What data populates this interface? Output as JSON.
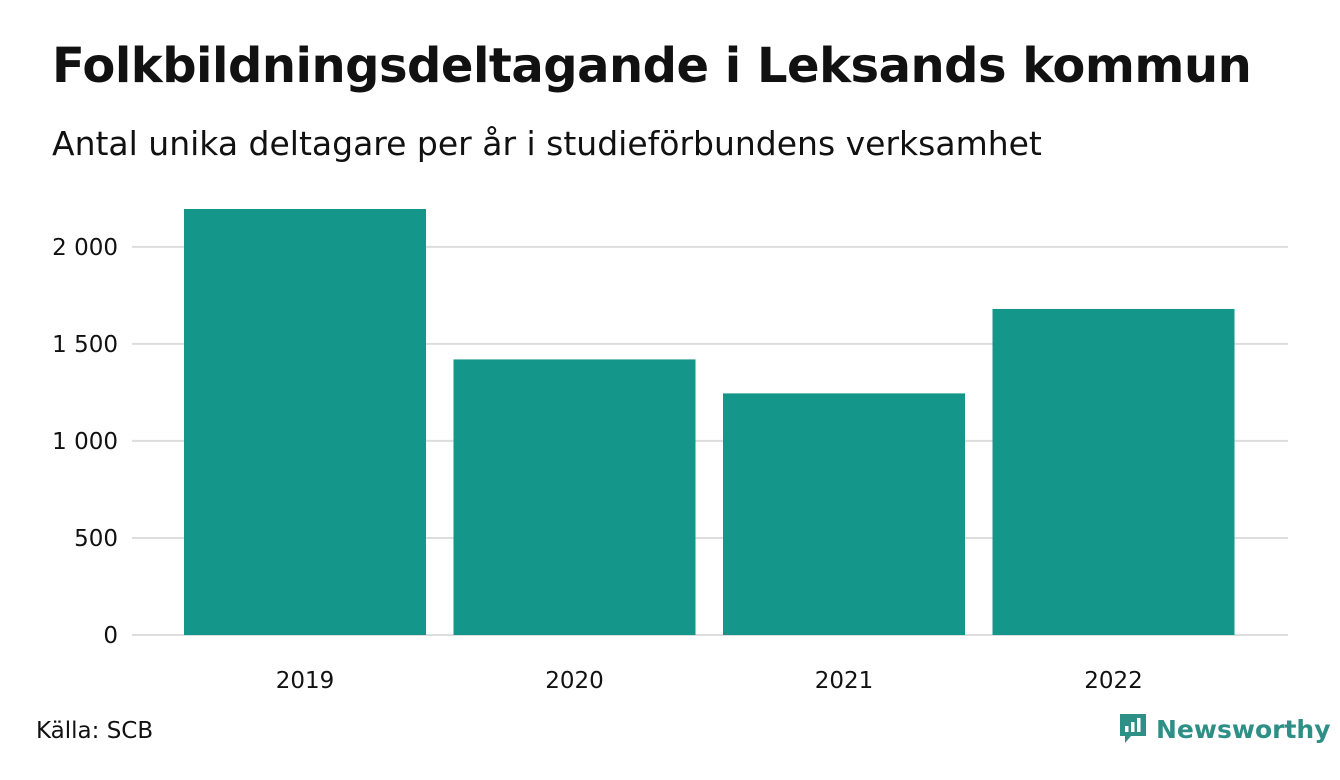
{
  "title": "Folkbildningsdeltagande i Leksands kommun",
  "subtitle": "Antal unika deltagare per år i studieförbundens verksamhet",
  "source": "Källa: SCB",
  "brand": {
    "name": "Newsworthy",
    "icon": "bar-chart-speech-bubble-icon"
  },
  "colors": {
    "bar": "#14968a",
    "grid": "#dddddd",
    "brand": "#2e8f86",
    "text": "#111111"
  },
  "chart_data": {
    "type": "bar",
    "categories": [
      "2019",
      "2020",
      "2021",
      "2022"
    ],
    "values": [
      2195,
      1420,
      1245,
      1680
    ],
    "yticks": [
      0,
      500,
      1000,
      1500,
      2000
    ],
    "ytick_labels": [
      "0",
      "500",
      "1 000",
      "1 500",
      "2 000"
    ],
    "ylim": [
      0,
      2195
    ],
    "grid": true,
    "xlabel": "",
    "ylabel": ""
  }
}
